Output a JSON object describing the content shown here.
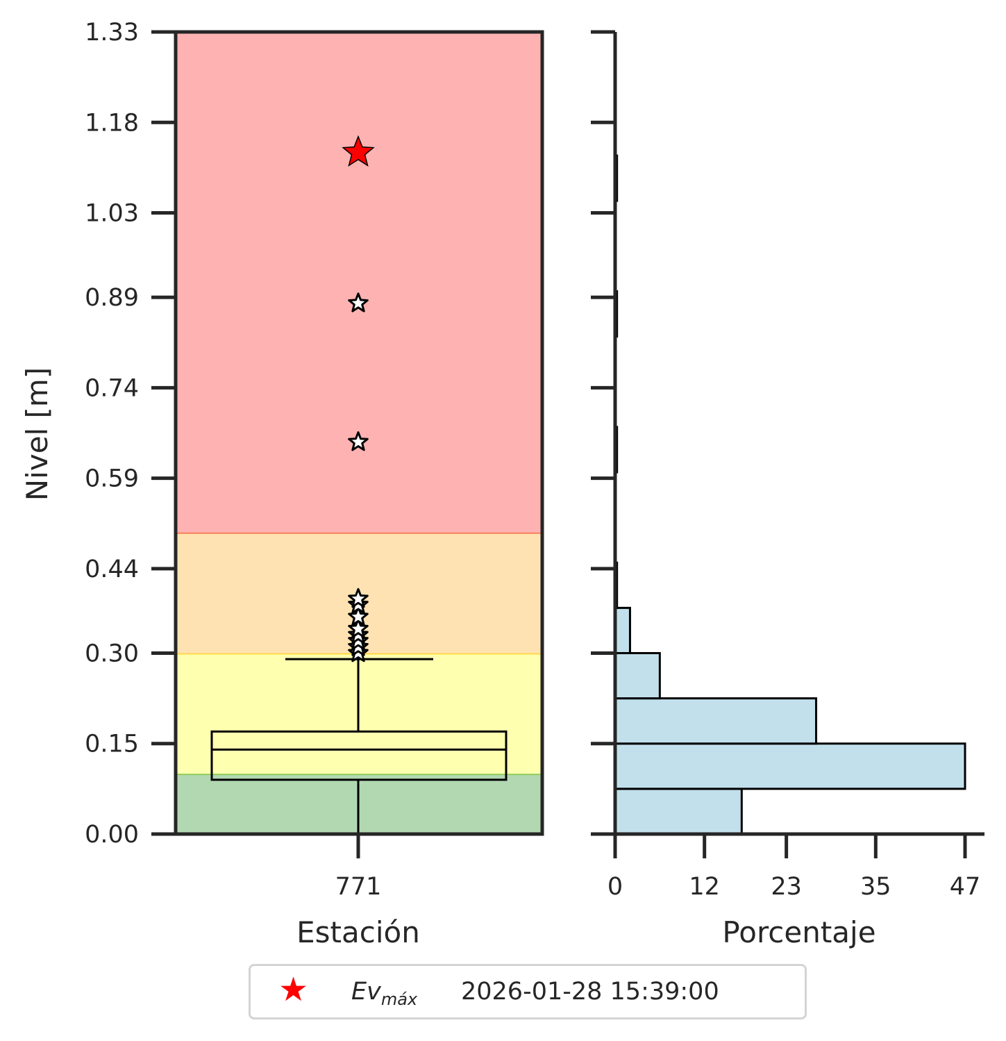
{
  "chart_data": [
    {
      "type": "boxplot",
      "xlabel": "Estación",
      "ylabel": "Nivel [m]",
      "categories": [
        "771"
      ],
      "ylim": [
        0.0,
        1.33
      ],
      "yticks": [
        "0.00",
        "0.15",
        "0.30",
        "0.44",
        "0.59",
        "0.74",
        "0.89",
        "1.03",
        "1.18",
        "1.33"
      ],
      "threshold_bands": [
        {
          "from": 0.0,
          "to": 0.1,
          "color": "#b2d8b2",
          "line": "#8fcc5a"
        },
        {
          "from": 0.1,
          "to": 0.3,
          "color": "#ffffb0",
          "line": "#ffd84a"
        },
        {
          "from": 0.3,
          "to": 0.5,
          "color": "#ffe2b2",
          "line": "#f57f5b"
        },
        {
          "from": 0.5,
          "to": 1.33,
          "color": "#ffb2b2",
          "line": null
        }
      ],
      "box": {
        "whisker_low": 0.0,
        "q1": 0.09,
        "median": 0.14,
        "q3": 0.17,
        "whisker_high": 0.29
      },
      "outliers": [
        0.3,
        0.31,
        0.32,
        0.33,
        0.34,
        0.36,
        0.38,
        0.39,
        0.65,
        0.88
      ],
      "max_event": {
        "value": 1.13,
        "color": "#ff0000"
      }
    },
    {
      "type": "histogram-horizontal",
      "xlabel": "Porcentaje",
      "xlim": [
        0,
        47
      ],
      "xticks": [
        "0",
        "12",
        "23",
        "35",
        "47"
      ],
      "bar_color": "#c2e0ec",
      "bins": [
        {
          "from": 0.0,
          "to": 0.075,
          "percent": 17.0
        },
        {
          "from": 0.075,
          "to": 0.15,
          "percent": 47.0
        },
        {
          "from": 0.15,
          "to": 0.225,
          "percent": 27.0
        },
        {
          "from": 0.225,
          "to": 0.3,
          "percent": 6.0
        },
        {
          "from": 0.3,
          "to": 0.375,
          "percent": 2.0
        },
        {
          "from": 0.375,
          "to": 0.45,
          "percent": 0.25
        },
        {
          "from": 0.6,
          "to": 0.675,
          "percent": 0.25
        },
        {
          "from": 0.825,
          "to": 0.9,
          "percent": 0.25
        },
        {
          "from": 1.05,
          "to": 1.125,
          "percent": 0.25
        }
      ]
    }
  ],
  "legend": {
    "marker_color": "#ff0000",
    "label": "Ev",
    "label_sub": "máx",
    "date": "2026-01-28 15:39:00"
  }
}
